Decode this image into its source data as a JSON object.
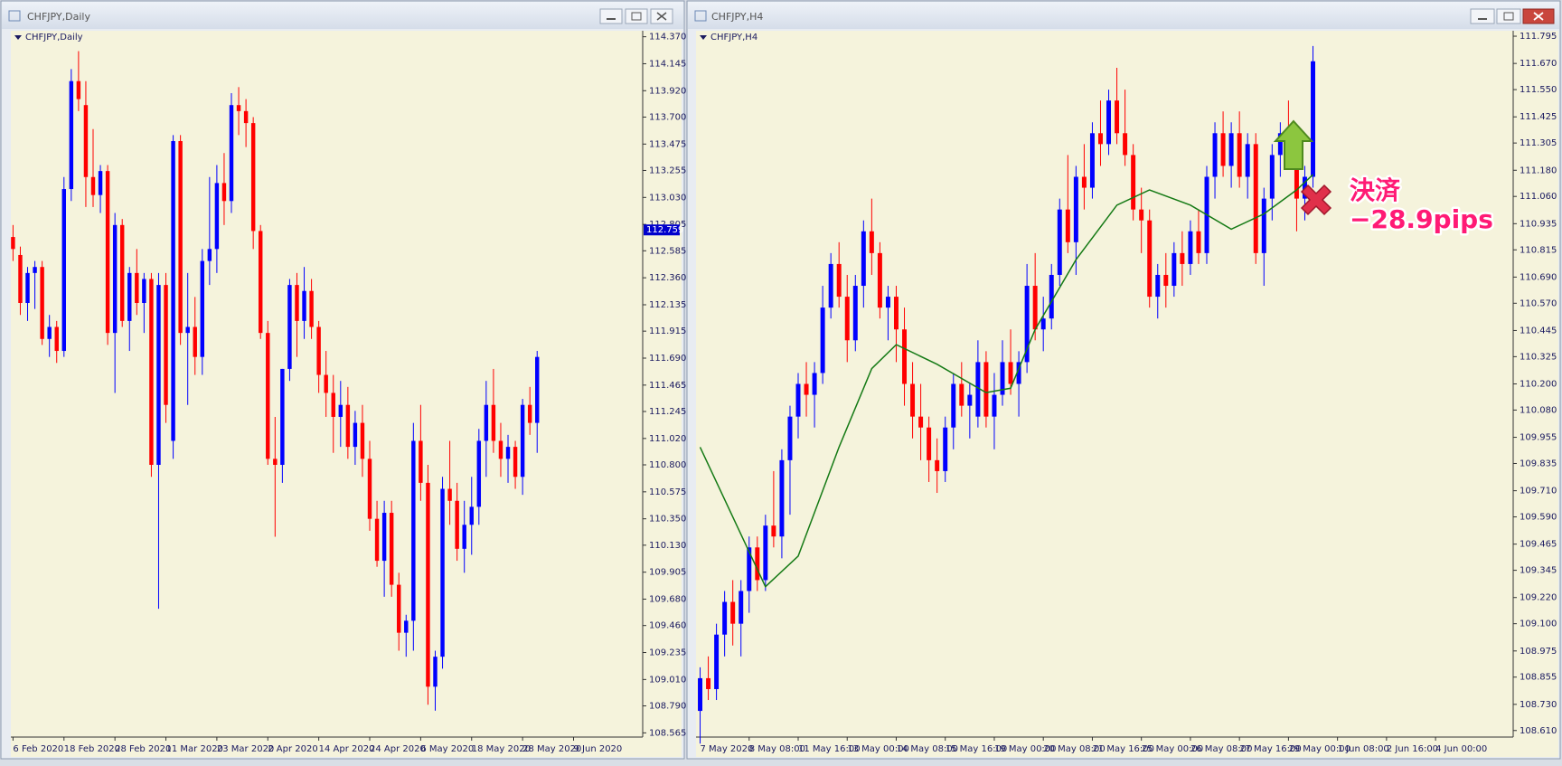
{
  "chart_data": [
    {
      "type": "candlestick",
      "window_title": "CHFJPY,Daily",
      "title": "CHFJPY,Daily",
      "up_color": "#0000ff",
      "down_color": "#ff0000",
      "background": "#f5f3dc",
      "ylim": [
        108.53,
        114.42
      ],
      "yticks": [
        {
          "value": 114.37,
          "label": "114.370"
        },
        114.145,
        {
          "value": 113.92,
          "label": "113.920"
        },
        {
          "value": 113.7,
          "label": "113.700"
        },
        113.475,
        113.255,
        {
          "value": 113.03,
          "label": "113.030"
        },
        112.805,
        112.585,
        {
          "value": 112.36,
          "label": "112.360"
        },
        112.135,
        111.915,
        {
          "value": 111.69,
          "label": "111.690"
        },
        111.465,
        111.245,
        {
          "value": 111.02,
          "label": "111.020"
        },
        {
          "value": 110.8,
          "label": "110.800"
        },
        110.575,
        {
          "value": 110.35,
          "label": "110.350"
        },
        {
          "value": 110.13,
          "label": "110.130"
        },
        109.905,
        {
          "value": 109.68,
          "label": "109.680"
        },
        {
          "value": 109.46,
          "label": "109.460"
        },
        109.235,
        {
          "value": 109.01,
          "label": "109.010"
        },
        {
          "value": 108.79,
          "label": "108.790"
        },
        108.565
      ],
      "current_price": 112.759,
      "xlim": [
        -0.3,
        86.5
      ],
      "xticks": [
        {
          "value": 0,
          "label": "6 Feb 2020"
        },
        {
          "value": 7,
          "label": "18 Feb 2020"
        },
        {
          "value": 14,
          "label": "28 Feb 2020"
        },
        {
          "value": 21,
          "label": "11 Mar 2020"
        },
        {
          "value": 28,
          "label": "23 Mar 2020"
        },
        {
          "value": 35,
          "label": "2 Apr 2020"
        },
        {
          "value": 42,
          "label": "14 Apr 2020"
        },
        {
          "value": 49,
          "label": "24 Apr 2020"
        },
        {
          "value": 56,
          "label": "6 May 2020"
        },
        {
          "value": 63,
          "label": "18 May 2020"
        },
        {
          "value": 70,
          "label": "28 May 2020"
        },
        {
          "value": 77,
          "label": "9 Jun 2020"
        }
      ],
      "candles": [
        [
          112.7,
          112.8,
          112.5,
          112.6
        ],
        [
          112.55,
          112.62,
          112.05,
          112.15
        ],
        [
          112.15,
          112.45,
          112.0,
          112.4
        ],
        [
          112.4,
          112.5,
          112.1,
          112.45
        ],
        [
          112.45,
          112.5,
          111.8,
          111.85
        ],
        [
          111.85,
          112.05,
          111.7,
          111.95
        ],
        [
          111.95,
          112.0,
          111.65,
          111.75
        ],
        [
          111.75,
          113.2,
          111.7,
          113.1
        ],
        [
          113.1,
          114.1,
          113.0,
          114.0
        ],
        [
          114.0,
          114.25,
          113.75,
          113.85
        ],
        [
          113.8,
          114.0,
          112.95,
          113.2
        ],
        [
          113.2,
          113.6,
          112.95,
          113.05
        ],
        [
          113.05,
          113.3,
          112.9,
          113.25
        ],
        [
          113.25,
          113.3,
          111.8,
          111.9
        ],
        [
          111.9,
          112.9,
          111.4,
          112.8
        ],
        [
          112.8,
          112.85,
          111.95,
          112.0
        ],
        [
          112.0,
          112.45,
          111.75,
          112.4
        ],
        [
          112.4,
          112.6,
          112.05,
          112.15
        ],
        [
          112.15,
          112.4,
          111.9,
          112.35
        ],
        [
          112.35,
          112.4,
          110.7,
          110.8
        ],
        [
          110.8,
          112.4,
          109.6,
          112.3
        ],
        [
          112.3,
          112.4,
          111.15,
          111.3
        ],
        [
          111.0,
          113.55,
          110.85,
          113.5
        ],
        [
          113.5,
          113.55,
          111.8,
          111.9
        ],
        [
          111.9,
          112.4,
          111.3,
          111.95
        ],
        [
          111.95,
          112.2,
          111.55,
          111.7
        ],
        [
          111.7,
          112.6,
          111.55,
          112.5
        ],
        [
          112.5,
          113.2,
          112.3,
          112.6
        ],
        [
          112.6,
          113.3,
          112.4,
          113.15
        ],
        [
          113.15,
          113.4,
          112.8,
          113.0
        ],
        [
          113.0,
          113.9,
          112.9,
          113.8
        ],
        [
          113.8,
          113.95,
          113.55,
          113.75
        ],
        [
          113.75,
          113.85,
          113.45,
          113.65
        ],
        [
          113.65,
          113.7,
          112.6,
          112.75
        ],
        [
          112.75,
          112.8,
          111.85,
          111.9
        ],
        [
          111.9,
          112.0,
          110.8,
          110.85
        ],
        [
          110.85,
          111.2,
          110.2,
          110.8
        ],
        [
          110.8,
          111.6,
          110.65,
          111.6
        ],
        [
          111.6,
          112.35,
          111.5,
          112.3
        ],
        [
          112.3,
          112.4,
          111.7,
          112.0
        ],
        [
          112.0,
          112.45,
          111.85,
          112.25
        ],
        [
          112.25,
          112.35,
          111.85,
          111.95
        ],
        [
          111.95,
          112.0,
          111.4,
          111.55
        ],
        [
          111.55,
          111.75,
          111.2,
          111.4
        ],
        [
          111.4,
          111.55,
          110.9,
          111.2
        ],
        [
          111.2,
          111.5,
          110.95,
          111.3
        ],
        [
          111.3,
          111.45,
          110.85,
          110.95
        ],
        [
          110.95,
          111.25,
          110.8,
          111.15
        ],
        [
          111.15,
          111.3,
          110.7,
          110.85
        ],
        [
          110.85,
          111.0,
          110.25,
          110.35
        ],
        [
          110.35,
          110.5,
          109.95,
          110.0
        ],
        [
          110.0,
          110.5,
          109.7,
          110.4
        ],
        [
          110.4,
          110.5,
          109.7,
          109.8
        ],
        [
          109.8,
          109.9,
          109.25,
          109.4
        ],
        [
          109.4,
          109.55,
          109.2,
          109.5
        ],
        [
          109.5,
          111.15,
          109.25,
          111.0
        ],
        [
          111.0,
          111.3,
          110.5,
          110.65
        ],
        [
          110.65,
          110.8,
          108.8,
          108.95
        ],
        [
          108.95,
          109.25,
          108.75,
          109.2
        ],
        [
          109.2,
          110.7,
          109.1,
          110.6
        ],
        [
          110.6,
          111.0,
          110.3,
          110.5
        ],
        [
          110.5,
          110.65,
          110.0,
          110.1
        ],
        [
          110.1,
          110.5,
          109.9,
          110.3
        ],
        [
          110.3,
          110.7,
          110.05,
          110.45
        ],
        [
          110.45,
          111.1,
          110.3,
          111.0
        ],
        [
          111.0,
          111.5,
          110.7,
          111.3
        ],
        [
          111.3,
          111.6,
          110.9,
          111.0
        ],
        [
          111.0,
          111.15,
          110.7,
          110.85
        ],
        [
          110.85,
          111.05,
          110.65,
          110.95
        ],
        [
          110.95,
          111.0,
          110.6,
          110.7
        ],
        [
          110.7,
          111.35,
          110.55,
          111.3
        ],
        [
          111.3,
          111.45,
          111.05,
          111.15
        ],
        [
          111.15,
          111.75,
          110.9,
          111.7
        ]
      ]
    },
    {
      "type": "candlestick",
      "window_title": "CHFJPY,H4",
      "title": "CHFJPY,H4",
      "up_color": "#0000ff",
      "down_color": "#ff0000",
      "background": "#f5f3dc",
      "ylim": [
        108.58,
        111.82
      ],
      "yticks": [
        111.795,
        {
          "value": 111.67,
          "label": "111.670"
        },
        {
          "value": 111.55,
          "label": "111.550"
        },
        111.425,
        111.305,
        {
          "value": 111.18,
          "label": "111.180"
        },
        {
          "value": 111.06,
          "label": "111.060"
        },
        110.935,
        110.815,
        {
          "value": 110.69,
          "label": "110.690"
        },
        {
          "value": 110.57,
          "label": "110.570"
        },
        110.445,
        110.325,
        {
          "value": 110.2,
          "label": "110.200"
        },
        {
          "value": 110.08,
          "label": "110.080"
        },
        109.955,
        109.835,
        {
          "value": 109.71,
          "label": "109.710"
        },
        {
          "value": 109.59,
          "label": "109.590"
        },
        109.465,
        109.345,
        {
          "value": 109.22,
          "label": "109.220"
        },
        {
          "value": 109.1,
          "label": "109.100"
        },
        108.975,
        108.855,
        {
          "value": 108.73,
          "label": "108.730"
        },
        {
          "value": 108.61,
          "label": "108.610"
        }
      ],
      "xlim": [
        -0.5,
        99.5
      ],
      "xticks": [
        {
          "value": 0,
          "label": "7 May 2020"
        },
        {
          "value": 6,
          "label": "8 May 08:00"
        },
        {
          "value": 12,
          "label": "11 May 16:00"
        },
        {
          "value": 18,
          "label": "13 May 00:00"
        },
        {
          "value": 24,
          "label": "14 May 08:00"
        },
        {
          "value": 30,
          "label": "15 May 16:00"
        },
        {
          "value": 36,
          "label": "19 May 00:00"
        },
        {
          "value": 42,
          "label": "20 May 08:00"
        },
        {
          "value": 48,
          "label": "21 May 16:00"
        },
        {
          "value": 54,
          "label": "25 May 00:00"
        },
        {
          "value": 60,
          "label": "26 May 08:00"
        },
        {
          "value": 66,
          "label": "27 May 16:00"
        },
        {
          "value": 72,
          "label": "29 May 00:00"
        },
        {
          "value": 78,
          "label": "1 Jun 08:00"
        },
        {
          "value": 84,
          "label": "2 Jun 16:00"
        },
        {
          "value": 90,
          "label": "4 Jun 00:00"
        }
      ],
      "candles": [
        [
          108.7,
          108.9,
          108.55,
          108.85
        ],
        [
          108.85,
          108.95,
          108.75,
          108.8
        ],
        [
          108.8,
          109.1,
          108.75,
          109.05
        ],
        [
          109.05,
          109.25,
          108.95,
          109.2
        ],
        [
          109.2,
          109.3,
          109.0,
          109.1
        ],
        [
          109.1,
          109.3,
          108.95,
          109.25
        ],
        [
          109.25,
          109.5,
          109.15,
          109.45
        ],
        [
          109.45,
          109.5,
          109.25,
          109.3
        ],
        [
          109.3,
          109.6,
          109.25,
          109.55
        ],
        [
          109.55,
          109.8,
          109.45,
          109.5
        ],
        [
          109.5,
          109.9,
          109.4,
          109.85
        ],
        [
          109.85,
          110.1,
          109.6,
          110.05
        ],
        [
          110.05,
          110.25,
          109.95,
          110.2
        ],
        [
          110.2,
          110.3,
          110.05,
          110.15
        ],
        [
          110.15,
          110.3,
          110.0,
          110.25
        ],
        [
          110.25,
          110.65,
          110.2,
          110.55
        ],
        [
          110.55,
          110.8,
          110.5,
          110.75
        ],
        [
          110.75,
          110.85,
          110.55,
          110.6
        ],
        [
          110.6,
          110.7,
          110.3,
          110.4
        ],
        [
          110.4,
          110.7,
          110.35,
          110.65
        ],
        [
          110.65,
          110.95,
          110.55,
          110.9
        ],
        [
          110.9,
          111.05,
          110.7,
          110.8
        ],
        [
          110.8,
          110.85,
          110.5,
          110.55
        ],
        [
          110.55,
          110.65,
          110.4,
          110.6
        ],
        [
          110.6,
          110.65,
          110.3,
          110.45
        ],
        [
          110.45,
          110.55,
          110.1,
          110.2
        ],
        [
          110.2,
          110.3,
          109.95,
          110.05
        ],
        [
          110.05,
          110.2,
          109.85,
          110.0
        ],
        [
          110.0,
          110.05,
          109.75,
          109.85
        ],
        [
          109.85,
          109.95,
          109.7,
          109.8
        ],
        [
          109.8,
          110.05,
          109.75,
          110.0
        ],
        [
          110.0,
          110.25,
          109.9,
          110.2
        ],
        [
          110.2,
          110.3,
          110.05,
          110.1
        ],
        [
          110.1,
          110.2,
          109.95,
          110.15
        ],
        [
          110.05,
          110.4,
          110.0,
          110.3
        ],
        [
          110.3,
          110.35,
          110.0,
          110.05
        ],
        [
          110.05,
          110.25,
          109.9,
          110.15
        ],
        [
          110.15,
          110.4,
          110.1,
          110.3
        ],
        [
          110.3,
          110.45,
          110.15,
          110.2
        ],
        [
          110.2,
          110.35,
          110.05,
          110.3
        ],
        [
          110.3,
          110.75,
          110.25,
          110.65
        ],
        [
          110.65,
          110.8,
          110.4,
          110.45
        ],
        [
          110.45,
          110.6,
          110.35,
          110.5
        ],
        [
          110.5,
          110.75,
          110.45,
          110.7
        ],
        [
          110.7,
          111.05,
          110.65,
          111.0
        ],
        [
          111.0,
          111.25,
          110.8,
          110.85
        ],
        [
          110.85,
          111.2,
          110.7,
          111.15
        ],
        [
          111.15,
          111.3,
          111.0,
          111.1
        ],
        [
          111.1,
          111.4,
          111.05,
          111.35
        ],
        [
          111.35,
          111.5,
          111.2,
          111.3
        ],
        [
          111.3,
          111.55,
          111.25,
          111.5
        ],
        [
          111.5,
          111.65,
          111.3,
          111.35
        ],
        [
          111.35,
          111.55,
          111.2,
          111.25
        ],
        [
          111.25,
          111.3,
          110.95,
          111.0
        ],
        [
          111.0,
          111.1,
          110.8,
          110.95
        ],
        [
          110.95,
          111.0,
          110.55,
          110.6
        ],
        [
          110.6,
          110.75,
          110.5,
          110.7
        ],
        [
          110.7,
          110.8,
          110.55,
          110.65
        ],
        [
          110.65,
          110.85,
          110.6,
          110.8
        ],
        [
          110.8,
          110.9,
          110.65,
          110.75
        ],
        [
          110.75,
          110.95,
          110.7,
          110.9
        ],
        [
          110.9,
          111.0,
          110.75,
          110.8
        ],
        [
          110.8,
          111.2,
          110.75,
          111.15
        ],
        [
          111.15,
          111.4,
          111.05,
          111.35
        ],
        [
          111.35,
          111.45,
          111.15,
          111.2
        ],
        [
          111.2,
          111.4,
          111.1,
          111.35
        ],
        [
          111.35,
          111.45,
          111.1,
          111.15
        ],
        [
          111.15,
          111.35,
          111.05,
          111.3
        ],
        [
          111.3,
          111.35,
          110.75,
          110.8
        ],
        [
          110.8,
          111.1,
          110.65,
          111.05
        ],
        [
          111.05,
          111.3,
          110.95,
          111.25
        ],
        [
          111.25,
          111.4,
          111.15,
          111.35
        ],
        [
          111.35,
          111.5,
          111.2,
          111.3
        ],
        [
          111.3,
          111.35,
          110.9,
          111.05
        ],
        [
          111.05,
          111.2,
          110.95,
          111.15
        ],
        [
          111.15,
          111.75,
          111.1,
          111.68
        ]
      ],
      "ma": {
        "color": "#157a15",
        "x": [
          0,
          8,
          12,
          17,
          21,
          24,
          29,
          35,
          38,
          41,
          46,
          51,
          55,
          60,
          65,
          69,
          73,
          75
        ],
        "values": [
          109.91,
          109.27,
          109.41,
          109.91,
          110.27,
          110.38,
          110.29,
          110.16,
          110.18,
          110.45,
          110.77,
          111.02,
          111.09,
          111.02,
          110.91,
          110.98,
          111.09,
          111.16
        ]
      },
      "annotations": [
        "決済",
        "−28.9pips"
      ]
    }
  ]
}
